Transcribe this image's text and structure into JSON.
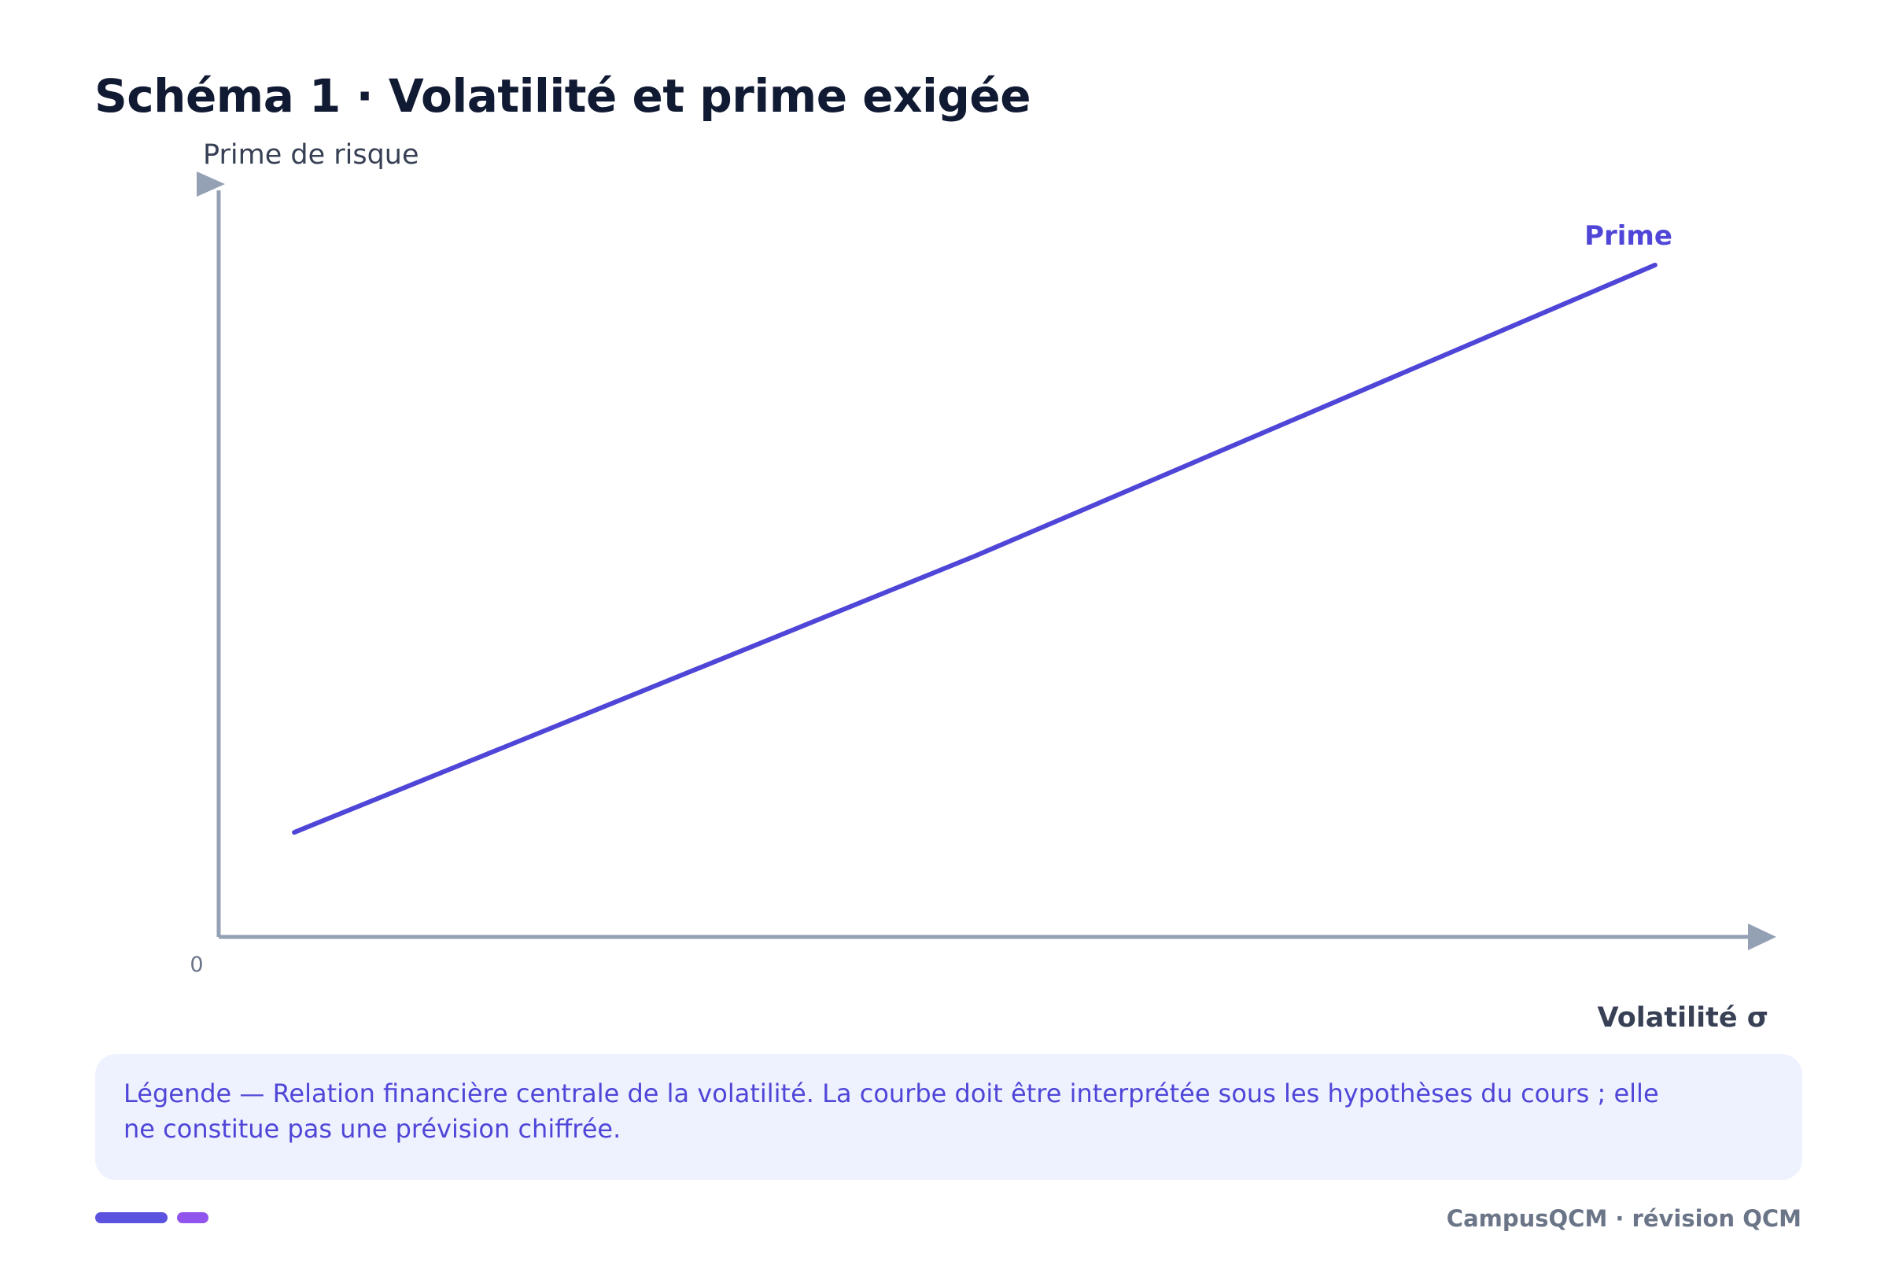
{
  "title": "Schéma 1 · Volatilité et prime exigée",
  "chart_data": {
    "type": "line",
    "xlabel": "Volatilité σ",
    "ylabel": "Prime de risque",
    "origin_label": "0",
    "series": [
      {
        "name": "Prime",
        "color": "#4f46d8",
        "x": [
          0.05,
          0.5,
          0.95
        ],
        "y": [
          0.14,
          0.51,
          0.9
        ]
      }
    ],
    "xlim": [
      0,
      1
    ],
    "ylim": [
      0,
      1
    ],
    "grid": false,
    "axis_color": "#94a0b4"
  },
  "legend": {
    "text": "Légende — Relation financière centrale de la volatilité. La courbe doit être interprétée sous les hypothèses du cours ; elle ne constitue pas une prévision chiffrée."
  },
  "footer": {
    "brand": "CampusQCM · révision QCM",
    "accent_colors": [
      "#5b53e0",
      "#9155ee"
    ]
  }
}
